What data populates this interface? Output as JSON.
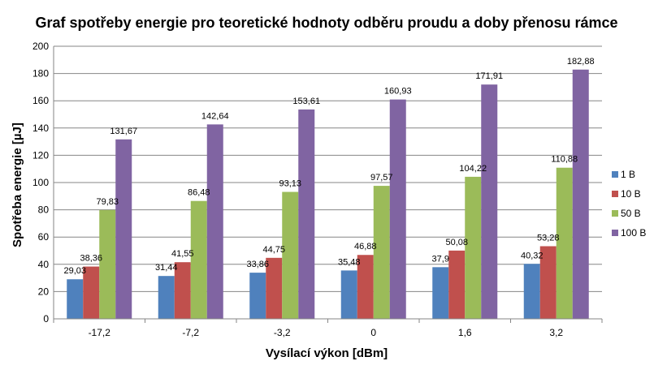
{
  "chart_data": {
    "type": "bar",
    "title": "Graf spotřeby energie pro teoretické hodnoty odběru proudu a doby přenosu rámce",
    "xlabel": "Vysílací výkon [dBm]",
    "ylabel": "Spotřeba energie [µJ]",
    "ylim": [
      0,
      200
    ],
    "yticks": [
      0,
      20,
      40,
      60,
      80,
      100,
      120,
      140,
      160,
      180,
      200
    ],
    "grid": true,
    "legend_position": "right",
    "categories": [
      "-17,2",
      "-7,2",
      "-3,2",
      "0",
      "1,6",
      "3,2"
    ],
    "series": [
      {
        "name": "1 B",
        "color": "#4F81BD",
        "values": [
          29.03,
          31.44,
          33.86,
          35.48,
          37.9,
          40.32
        ],
        "labels": [
          "29,03",
          "31,44",
          "33,86",
          "35,48",
          "37,9",
          "40,32"
        ]
      },
      {
        "name": "10 B",
        "color": "#C0504D",
        "values": [
          38.36,
          41.55,
          44.75,
          46.88,
          50.08,
          53.28
        ],
        "labels": [
          "38,36",
          "41,55",
          "44,75",
          "46,88",
          "50,08",
          "53,28"
        ]
      },
      {
        "name": "50 B",
        "color": "#9BBB59",
        "values": [
          79.83,
          86.48,
          93.13,
          97.57,
          104.22,
          110.88
        ],
        "labels": [
          "79,83",
          "86,48",
          "93,13",
          "97,57",
          "104,22",
          "110,88"
        ]
      },
      {
        "name": "100 B",
        "color": "#8064A2",
        "values": [
          131.67,
          142.64,
          153.61,
          160.93,
          171.91,
          182.88
        ],
        "labels": [
          "131,67",
          "142,64",
          "153,61",
          "160,93",
          "171,91",
          "182,88"
        ]
      }
    ]
  }
}
